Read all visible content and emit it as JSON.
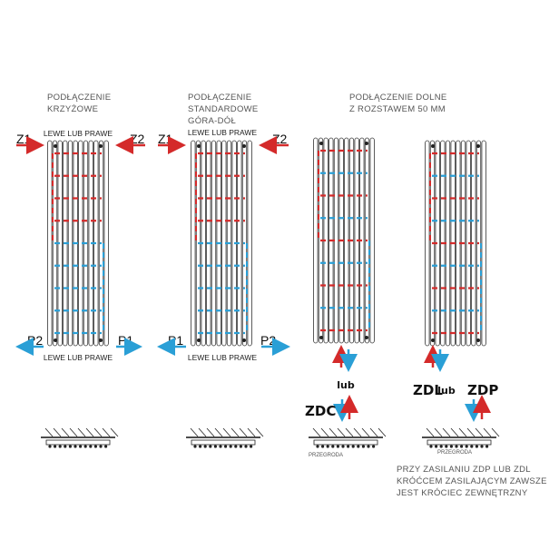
{
  "colors": {
    "supply": "#d42a2a",
    "return": "#2a9fd6",
    "outline": "#333333"
  },
  "variants": [
    {
      "title_lines": [
        "PODŁĄCZENIE",
        "KRZYŻOWE"
      ],
      "top_label": "LEWE LUB PRAWE",
      "bottom_label": "LEWE LUB PRAWE",
      "top_left": "Z1",
      "top_right": "Z2",
      "bottom_left": "P2",
      "bottom_right": "P1"
    },
    {
      "title_lines": [
        "PODŁĄCZENIE",
        "STANDARDOWE",
        "GÓRA-DÓŁ"
      ],
      "top_label": "LEWE LUB PRAWE",
      "bottom_label": "LEWE LUB PRAWE",
      "top_left": "Z1",
      "top_right": "Z2",
      "bottom_left": "P1",
      "bottom_right": "P2"
    },
    {
      "title_lines": [
        "PODŁĄCZENIE DOLNE",
        "Z ROZSTAWEM  50 MM"
      ],
      "or_label": "lub",
      "code": "ZDC",
      "partition": "PRZEGRODA"
    },
    {
      "code_left": "ZDL",
      "or_label": "lub",
      "code_right": "ZDP",
      "partition": "PRZEGRODA",
      "note_lines": [
        "PRZY ZASILANIU ZDP LUB ZDL",
        "KRÓĆCEM ZASILAJĄCYM ZAWSZE",
        "JEST KRÓCIEC ZEWNĘTRZNY"
      ]
    }
  ]
}
